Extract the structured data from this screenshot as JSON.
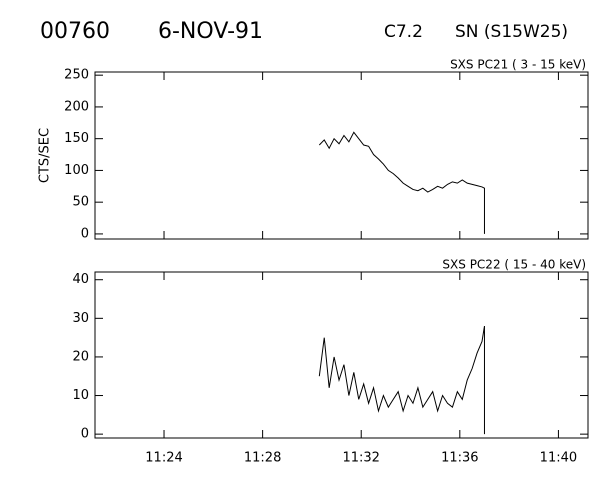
{
  "header": {
    "id": "00760",
    "date": "6-NOV-91",
    "class": "C7.2",
    "location": "SN (S15W25)"
  },
  "chart_data": [
    {
      "type": "line",
      "title": "SXS PC21  (  3 - 15 keV)",
      "y_label": "CTS/SEC",
      "xlim": [
        681.2,
        701.2
      ],
      "ylim": [
        -8,
        255
      ],
      "yticks": [
        0,
        50,
        100,
        150,
        200,
        250
      ],
      "series": [
        {
          "color": "#000000",
          "x": [
            690.3,
            690.5,
            690.7,
            690.9,
            691.1,
            691.3,
            691.5,
            691.7,
            691.9,
            692.1,
            692.3,
            692.5,
            692.7,
            692.9,
            693.1,
            693.3,
            693.5,
            693.7,
            693.9,
            694.1,
            694.3,
            694.5,
            694.7,
            694.9,
            695.1,
            695.3,
            695.5,
            695.7,
            695.9,
            696.1,
            696.3,
            696.5,
            696.7,
            696.9,
            697.0,
            697.0
          ],
          "values": [
            140,
            148,
            135,
            150,
            142,
            155,
            145,
            160,
            150,
            140,
            138,
            125,
            118,
            110,
            100,
            95,
            88,
            80,
            75,
            70,
            68,
            72,
            66,
            70,
            75,
            72,
            78,
            82,
            80,
            85,
            80,
            78,
            76,
            74,
            72,
            0
          ]
        }
      ]
    },
    {
      "type": "line",
      "title": "SXS PC22  ( 15 - 40 keV)",
      "xlim": [
        681.2,
        701.2
      ],
      "ylim": [
        -1,
        42
      ],
      "yticks": [
        0,
        10,
        20,
        30,
        40
      ],
      "xticks": [
        {
          "value": 684,
          "label": "11:24"
        },
        {
          "value": 688,
          "label": "11:28"
        },
        {
          "value": 692,
          "label": "11:32"
        },
        {
          "value": 696,
          "label": "11:36"
        },
        {
          "value": 700,
          "label": "11:40"
        }
      ],
      "series": [
        {
          "color": "#000000",
          "x": [
            690.3,
            690.5,
            690.7,
            690.9,
            691.1,
            691.3,
            691.5,
            691.7,
            691.9,
            692.1,
            692.3,
            692.5,
            692.7,
            692.9,
            693.1,
            693.3,
            693.5,
            693.7,
            693.9,
            694.1,
            694.3,
            694.5,
            694.7,
            694.9,
            695.1,
            695.3,
            695.5,
            695.7,
            695.9,
            696.1,
            696.3,
            696.5,
            696.7,
            696.9,
            697.0,
            697.0
          ],
          "values": [
            15,
            25,
            12,
            20,
            14,
            18,
            10,
            16,
            9,
            13,
            8,
            12,
            6,
            10,
            7,
            9,
            11,
            6,
            10,
            8,
            12,
            7,
            9,
            11,
            6,
            10,
            8,
            7,
            11,
            9,
            14,
            17,
            21,
            24,
            28,
            0
          ]
        }
      ]
    }
  ]
}
